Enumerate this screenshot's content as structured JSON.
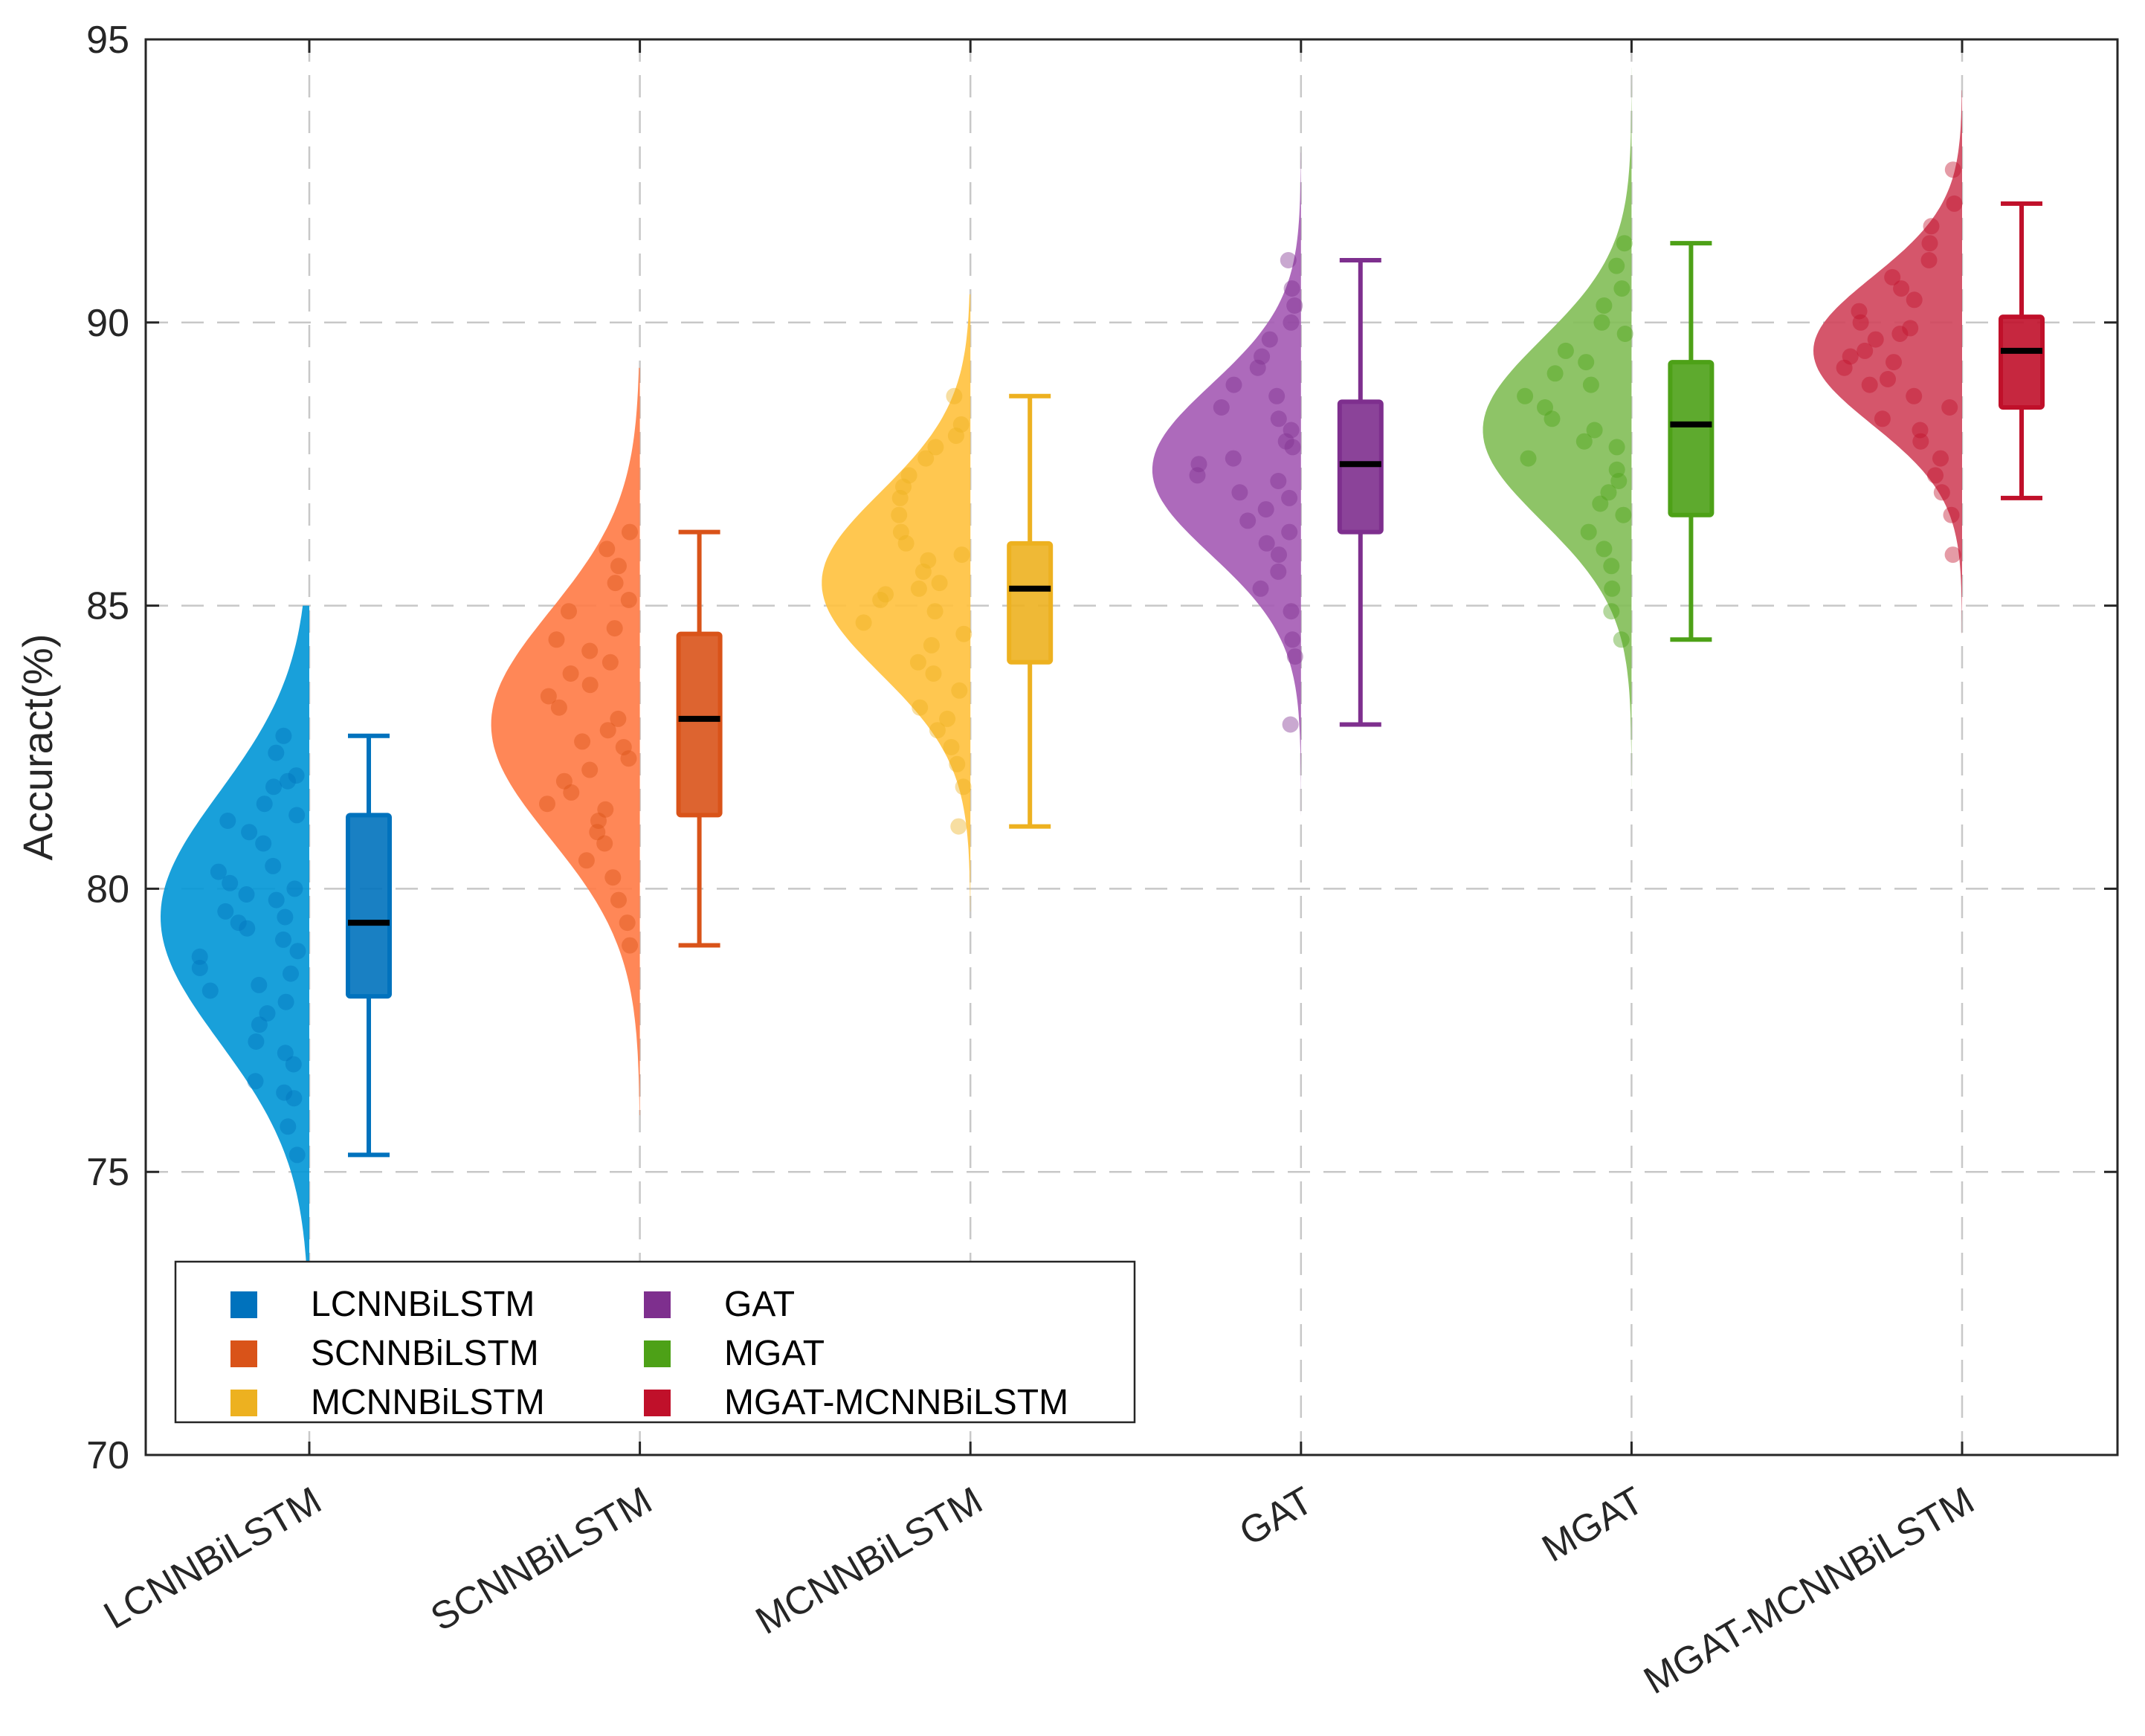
{
  "chart_data": {
    "type": "raincloud",
    "title": "",
    "xlabel": "",
    "ylabel": "Accuract(%)",
    "ylim": [
      70,
      95
    ],
    "yticks": [
      70,
      75,
      80,
      85,
      90,
      95
    ],
    "grid": true,
    "legend_position": "bottom-left",
    "categories": [
      "LCNNBiLSTM",
      "SCNNBiLSTM",
      "MCNNBiLSTM",
      "GAT",
      "MGAT",
      "MGAT-MCNNBiLSTM"
    ],
    "series": [
      {
        "name": "LCNNBiLSTM",
        "color": "#0072BD",
        "cloud_color": "#0096D6",
        "density_mean": 79.5,
        "density_sd": 2.2,
        "density_range": [
          73.0,
          85.0
        ],
        "q1": 78.1,
        "median": 79.4,
        "q3": 81.3,
        "whisker_low": 75.3,
        "whisker_high": 82.7,
        "points": [
          82.7,
          82.4,
          82.0,
          81.9,
          81.8,
          81.5,
          81.3,
          81.2,
          81.0,
          80.8,
          80.4,
          80.3,
          80.1,
          80.0,
          79.9,
          79.8,
          79.6,
          79.5,
          79.4,
          79.3,
          79.1,
          78.9,
          78.8,
          78.6,
          78.5,
          78.3,
          78.2,
          78.0,
          77.8,
          77.6,
          77.3,
          77.1,
          76.9,
          76.6,
          76.4,
          76.3,
          75.8,
          75.3
        ]
      },
      {
        "name": "SCNNBiLSTM",
        "color": "#D95319",
        "cloud_color": "#FF7A45",
        "density_mean": 82.9,
        "density_sd": 2.0,
        "density_range": [
          76.0,
          89.2
        ],
        "q1": 81.3,
        "median": 83.0,
        "q3": 84.5,
        "whisker_low": 79.0,
        "whisker_high": 86.3,
        "points": [
          86.3,
          86.0,
          85.7,
          85.4,
          85.1,
          84.9,
          84.6,
          84.4,
          84.2,
          84.0,
          83.8,
          83.6,
          83.4,
          83.2,
          83.0,
          82.8,
          82.6,
          82.5,
          82.3,
          82.1,
          81.9,
          81.7,
          81.5,
          81.4,
          81.2,
          81.0,
          80.8,
          80.5,
          80.2,
          79.8,
          79.4,
          79.0
        ]
      },
      {
        "name": "MCNNBiLSTM",
        "color": "#EDB120",
        "cloud_color": "#FFC13D",
        "density_mean": 85.4,
        "density_sd": 1.6,
        "density_range": [
          79.6,
          90.5
        ],
        "q1": 84.0,
        "median": 85.3,
        "q3": 86.1,
        "whisker_low": 81.1,
        "whisker_high": 88.7,
        "points": [
          88.7,
          88.2,
          88.0,
          87.8,
          87.6,
          87.3,
          87.1,
          86.9,
          86.6,
          86.3,
          86.1,
          85.9,
          85.8,
          85.6,
          85.4,
          85.3,
          85.2,
          85.1,
          84.9,
          84.7,
          84.5,
          84.3,
          84.0,
          83.8,
          83.5,
          83.2,
          83.0,
          82.8,
          82.5,
          82.2,
          81.8,
          81.1
        ]
      },
      {
        "name": "GAT",
        "color": "#7E2F8E",
        "cloud_color": "#A45AB4",
        "density_mean": 87.4,
        "density_sd": 1.5,
        "density_range": [
          81.2,
          93.0
        ],
        "q1": 86.3,
        "median": 87.5,
        "q3": 88.6,
        "whisker_low": 82.9,
        "whisker_high": 91.1,
        "points": [
          91.1,
          90.6,
          90.3,
          90.0,
          89.7,
          89.4,
          89.2,
          88.9,
          88.7,
          88.5,
          88.3,
          88.1,
          87.9,
          87.8,
          87.6,
          87.5,
          87.3,
          87.2,
          87.0,
          86.9,
          86.7,
          86.5,
          86.3,
          86.1,
          85.9,
          85.6,
          85.3,
          84.9,
          84.4,
          84.1,
          82.9
        ]
      },
      {
        "name": "MGAT",
        "color": "#4DA117",
        "cloud_color": "#82BE57",
        "density_mean": 88.1,
        "density_sd": 1.6,
        "density_range": [
          81.8,
          94.5
        ],
        "q1": 86.6,
        "median": 88.2,
        "q3": 89.3,
        "whisker_low": 84.4,
        "whisker_high": 91.4,
        "points": [
          91.4,
          91.0,
          90.6,
          90.3,
          90.0,
          89.8,
          89.5,
          89.3,
          89.1,
          88.9,
          88.7,
          88.5,
          88.3,
          88.1,
          87.9,
          87.8,
          87.6,
          87.4,
          87.2,
          87.0,
          86.8,
          86.6,
          86.3,
          86.0,
          85.7,
          85.3,
          84.9,
          84.4
        ]
      },
      {
        "name": "MGAT-MCNNBiLSTM",
        "color": "#C0102A",
        "cloud_color": "#D0445B",
        "density_mean": 89.5,
        "density_sd": 1.3,
        "density_range": [
          84.5,
          94.1
        ],
        "q1": 88.5,
        "median": 89.5,
        "q3": 90.1,
        "whisker_low": 86.9,
        "whisker_high": 92.1,
        "points": [
          92.7,
          92.1,
          91.7,
          91.4,
          91.1,
          90.8,
          90.6,
          90.4,
          90.2,
          90.0,
          89.9,
          89.8,
          89.7,
          89.5,
          89.4,
          89.3,
          89.2,
          89.0,
          88.9,
          88.7,
          88.5,
          88.3,
          88.1,
          87.9,
          87.6,
          87.3,
          87.0,
          86.6,
          85.9
        ]
      }
    ]
  }
}
